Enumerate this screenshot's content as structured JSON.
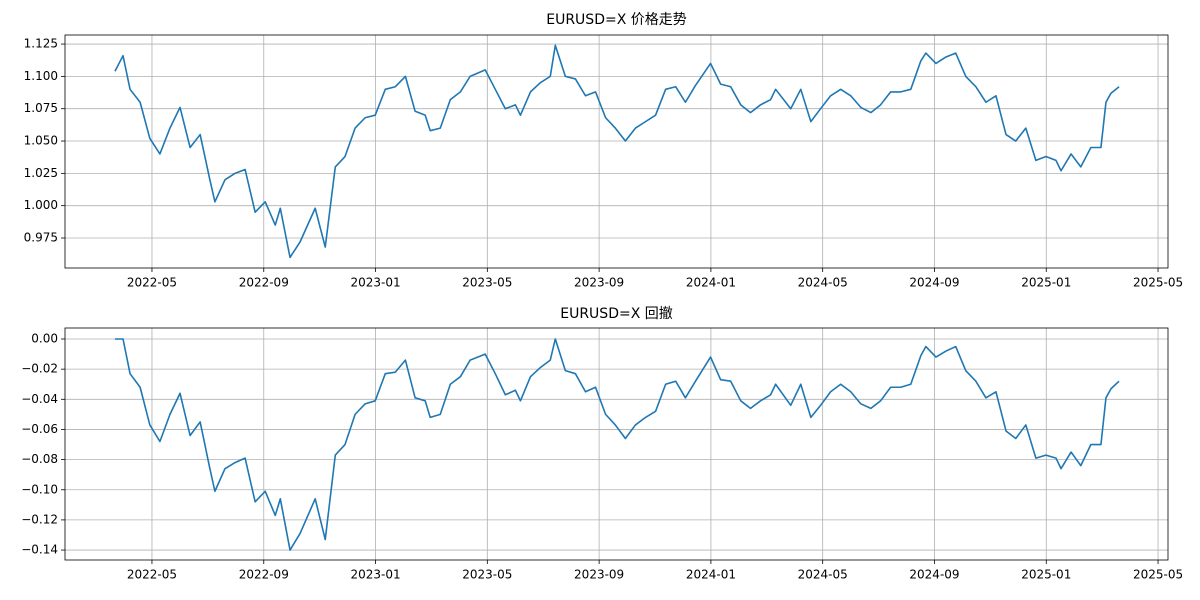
{
  "chart_data": [
    {
      "type": "line",
      "title": "EURUSD=X 价格走势",
      "color": "#1f77b4",
      "grid": true,
      "x": [
        2022.223,
        2022.247,
        2022.268,
        2022.298,
        2022.327,
        2022.357,
        2022.387,
        2022.417,
        2022.447,
        2022.477,
        2022.506,
        2022.521,
        2022.551,
        2022.581,
        2022.611,
        2022.641,
        2022.671,
        2022.701,
        2022.716,
        2022.745,
        2022.775,
        2022.82,
        2022.85,
        2022.88,
        2022.909,
        2022.939,
        2022.969,
        2022.999,
        2023.029,
        2023.059,
        2023.089,
        2023.118,
        2023.148,
        2023.163,
        2023.193,
        2023.223,
        2023.253,
        2023.282,
        2023.327,
        2023.357,
        2023.387,
        2023.417,
        2023.432,
        2023.462,
        2023.491,
        2023.521,
        2023.536,
        2023.566,
        2023.596,
        2023.626,
        2023.656,
        2023.686,
        2023.715,
        2023.745,
        2023.775,
        2023.805,
        2023.835,
        2023.865,
        2023.895,
        2023.924,
        2023.954,
        2023.999,
        2024.029,
        2024.059,
        2024.089,
        2024.118,
        2024.148,
        2024.178,
        2024.193,
        2024.238,
        2024.268,
        2024.298,
        2024.327,
        2024.357,
        2024.387,
        2024.417,
        2024.447,
        2024.477,
        2024.506,
        2024.536,
        2024.566,
        2024.596,
        2024.626,
        2024.641,
        2024.671,
        2024.701,
        2024.73,
        2024.76,
        2024.79,
        2024.82,
        2024.85,
        2024.88,
        2024.909,
        2024.939,
        2024.969,
        2024.999,
        2025.029,
        2025.044,
        2025.074,
        2025.103,
        2025.133,
        2025.163,
        2025.178,
        2025.193,
        2025.217
      ],
      "values": [
        1.104,
        1.116,
        1.09,
        1.08,
        1.052,
        1.04,
        1.06,
        1.076,
        1.045,
        1.055,
        1.02,
        1.003,
        1.02,
        1.025,
        1.028,
        0.995,
        1.003,
        0.985,
        0.998,
        0.96,
        0.972,
        0.998,
        0.968,
        1.03,
        1.038,
        1.06,
        1.068,
        1.07,
        1.09,
        1.092,
        1.1,
        1.073,
        1.07,
        1.058,
        1.06,
        1.082,
        1.088,
        1.1,
        1.105,
        1.09,
        1.075,
        1.078,
        1.07,
        1.088,
        1.095,
        1.1,
        1.124,
        1.1,
        1.098,
        1.085,
        1.088,
        1.068,
        1.06,
        1.05,
        1.06,
        1.065,
        1.07,
        1.09,
        1.092,
        1.08,
        1.093,
        1.11,
        1.094,
        1.092,
        1.078,
        1.072,
        1.078,
        1.082,
        1.09,
        1.075,
        1.09,
        1.065,
        1.075,
        1.085,
        1.09,
        1.085,
        1.076,
        1.072,
        1.078,
        1.088,
        1.088,
        1.09,
        1.112,
        1.118,
        1.11,
        1.115,
        1.118,
        1.1,
        1.092,
        1.08,
        1.085,
        1.055,
        1.05,
        1.06,
        1.035,
        1.038,
        1.035,
        1.027,
        1.04,
        1.03,
        1.045,
        1.045,
        1.08,
        1.087,
        1.092
      ],
      "xlim": [
        2022.074,
        2025.363
      ],
      "xticks": [
        {
          "value": 2022.3333,
          "label": "2022-05"
        },
        {
          "value": 2022.6667,
          "label": "2022-09"
        },
        {
          "value": 2023.0,
          "label": "2023-01"
        },
        {
          "value": 2023.3333,
          "label": "2023-05"
        },
        {
          "value": 2023.6667,
          "label": "2023-09"
        },
        {
          "value": 2024.0,
          "label": "2024-01"
        },
        {
          "value": 2024.3333,
          "label": "2024-05"
        },
        {
          "value": 2024.6667,
          "label": "2024-09"
        },
        {
          "value": 2025.0,
          "label": "2025-01"
        },
        {
          "value": 2025.3333,
          "label": "2025-05"
        }
      ],
      "ylim": [
        0.9518,
        1.132
      ],
      "yticks": [
        0.975,
        {
          "value": 1,
          "label": "1.000"
        },
        1.025,
        {
          "value": 1.05,
          "label": "1.050"
        },
        1.075,
        {
          "value": 1.1,
          "label": "1.100"
        },
        1.125
      ]
    },
    {
      "type": "line",
      "title": "EURUSD=X 回撤",
      "color": "#1f77b4",
      "grid": true,
      "x": [
        2022.223,
        2022.247,
        2022.268,
        2022.298,
        2022.327,
        2022.357,
        2022.387,
        2022.417,
        2022.447,
        2022.477,
        2022.506,
        2022.521,
        2022.551,
        2022.581,
        2022.611,
        2022.641,
        2022.671,
        2022.701,
        2022.716,
        2022.745,
        2022.775,
        2022.82,
        2022.85,
        2022.88,
        2022.909,
        2022.939,
        2022.969,
        2022.999,
        2023.029,
        2023.059,
        2023.089,
        2023.118,
        2023.148,
        2023.163,
        2023.193,
        2023.223,
        2023.253,
        2023.282,
        2023.327,
        2023.357,
        2023.387,
        2023.417,
        2023.432,
        2023.462,
        2023.491,
        2023.521,
        2023.536,
        2023.566,
        2023.596,
        2023.626,
        2023.656,
        2023.686,
        2023.715,
        2023.745,
        2023.775,
        2023.805,
        2023.835,
        2023.865,
        2023.895,
        2023.924,
        2023.954,
        2023.999,
        2024.029,
        2024.059,
        2024.089,
        2024.118,
        2024.148,
        2024.178,
        2024.193,
        2024.238,
        2024.268,
        2024.298,
        2024.327,
        2024.357,
        2024.387,
        2024.417,
        2024.447,
        2024.477,
        2024.506,
        2024.536,
        2024.566,
        2024.596,
        2024.626,
        2024.641,
        2024.671,
        2024.701,
        2024.73,
        2024.76,
        2024.79,
        2024.82,
        2024.85,
        2024.88,
        2024.909,
        2024.939,
        2024.969,
        2024.999,
        2025.029,
        2025.044,
        2025.074,
        2025.103,
        2025.133,
        2025.163,
        2025.178,
        2025.193,
        2025.217
      ],
      "values": [
        0,
        0,
        -0.023,
        -0.032,
        -0.057,
        -0.068,
        -0.05,
        -0.036,
        -0.064,
        -0.055,
        -0.086,
        -0.101,
        -0.086,
        -0.082,
        -0.079,
        -0.108,
        -0.101,
        -0.117,
        -0.106,
        -0.14,
        -0.129,
        -0.106,
        -0.133,
        -0.077,
        -0.07,
        -0.05,
        -0.043,
        -0.041,
        -0.023,
        -0.022,
        -0.014,
        -0.039,
        -0.041,
        -0.052,
        -0.05,
        -0.03,
        -0.025,
        -0.014,
        -0.01,
        -0.023,
        -0.037,
        -0.034,
        -0.041,
        -0.025,
        -0.019,
        -0.014,
        0,
        -0.021,
        -0.023,
        -0.035,
        -0.032,
        -0.05,
        -0.057,
        -0.066,
        -0.057,
        -0.052,
        -0.048,
        -0.03,
        -0.028,
        -0.039,
        -0.028,
        -0.012,
        -0.027,
        -0.028,
        -0.041,
        -0.046,
        -0.041,
        -0.037,
        -0.03,
        -0.044,
        -0.03,
        -0.052,
        -0.044,
        -0.035,
        -0.03,
        -0.035,
        -0.043,
        -0.046,
        -0.041,
        -0.032,
        -0.032,
        -0.03,
        -0.011,
        -0.005,
        -0.012,
        -0.008,
        -0.005,
        -0.021,
        -0.028,
        -0.039,
        -0.035,
        -0.061,
        -0.066,
        -0.057,
        -0.079,
        -0.077,
        -0.079,
        -0.086,
        -0.075,
        -0.084,
        -0.07,
        -0.07,
        -0.039,
        -0.033,
        -0.028
      ],
      "xlim": [
        2022.074,
        2025.363
      ],
      "xticks": [
        {
          "value": 2022.3333,
          "label": "2022-05"
        },
        {
          "value": 2022.6667,
          "label": "2022-09"
        },
        {
          "value": 2023.0,
          "label": "2023-01"
        },
        {
          "value": 2023.3333,
          "label": "2023-05"
        },
        {
          "value": 2023.6667,
          "label": "2023-09"
        },
        {
          "value": 2024.0,
          "label": "2024-01"
        },
        {
          "value": 2024.3333,
          "label": "2024-05"
        },
        {
          "value": 2024.6667,
          "label": "2024-09"
        },
        {
          "value": 2025.0,
          "label": "2025-01"
        },
        {
          "value": 2025.3333,
          "label": "2025-05"
        }
      ],
      "ylim": [
        -0.1466,
        0.0073
      ],
      "yticks": [
        {
          "value": -0.14,
          "label": "−0.14"
        },
        {
          "value": -0.12,
          "label": "−0.12"
        },
        {
          "value": -0.1,
          "label": "−0.10"
        },
        {
          "value": -0.08,
          "label": "−0.08"
        },
        {
          "value": -0.06,
          "label": "−0.06"
        },
        {
          "value": -0.04,
          "label": "−0.04"
        },
        {
          "value": -0.02,
          "label": "−0.02"
        },
        {
          "value": 0,
          "label": "0.00"
        }
      ]
    }
  ]
}
